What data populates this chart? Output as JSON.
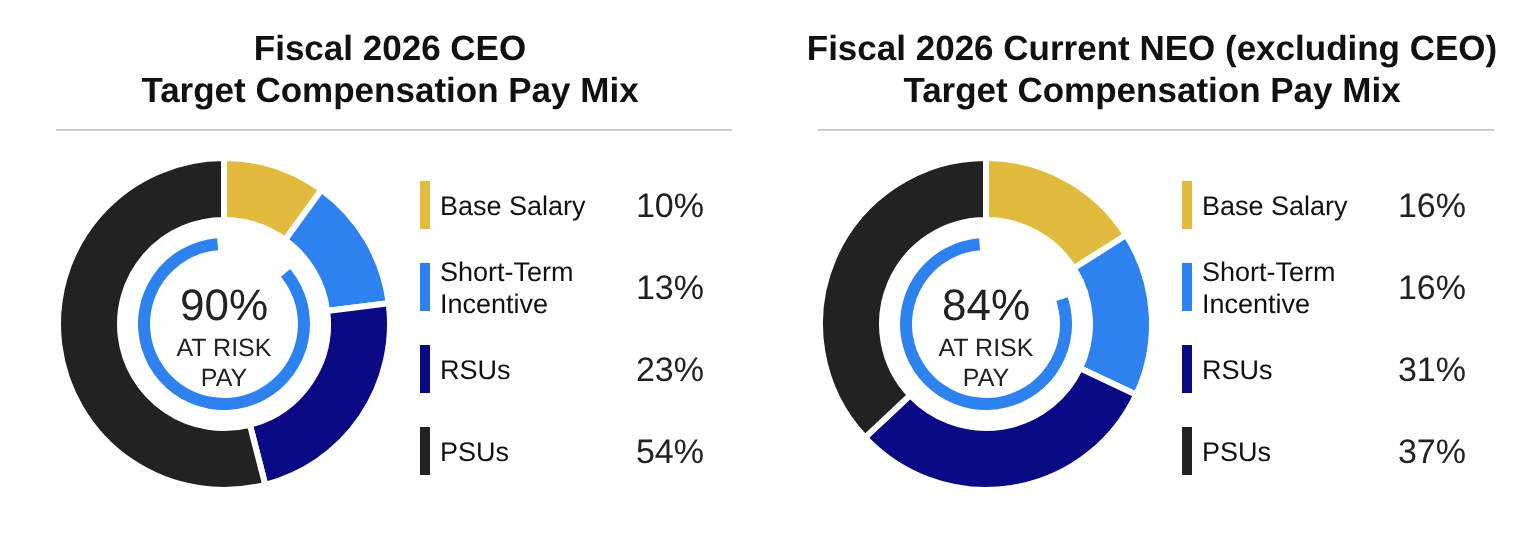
{
  "chart_data": [
    {
      "type": "donut",
      "title": "Fiscal 2026 CEO\nTarget Compensation Pay Mix",
      "categories": [
        "Base Salary",
        "Short-Term\nIncentive",
        "RSUs",
        "PSUs"
      ],
      "values": [
        10,
        13,
        23,
        54
      ],
      "value_labels": [
        "10%",
        "13%",
        "23%",
        "54%"
      ],
      "colors": [
        "#e2ba3e",
        "#2d82f0",
        "#0a0a85",
        "#222222"
      ],
      "legend": "right",
      "annotations": [
        "90%",
        "AT RISK\nPAY"
      ]
    },
    {
      "type": "donut",
      "title": "Fiscal 2026 Current NEO (excluding CEO)\nTarget Compensation Pay Mix",
      "categories": [
        "Base Salary",
        "Short-Term\nIncentive",
        "RSUs",
        "PSUs"
      ],
      "values": [
        16,
        16,
        31,
        37
      ],
      "value_labels": [
        "16%",
        "16%",
        "31%",
        "37%"
      ],
      "colors": [
        "#e2ba3e",
        "#2d82f0",
        "#0a0a85",
        "#222222"
      ],
      "legend": "right",
      "annotations": [
        "84%",
        "AT RISK\nPAY"
      ]
    }
  ]
}
